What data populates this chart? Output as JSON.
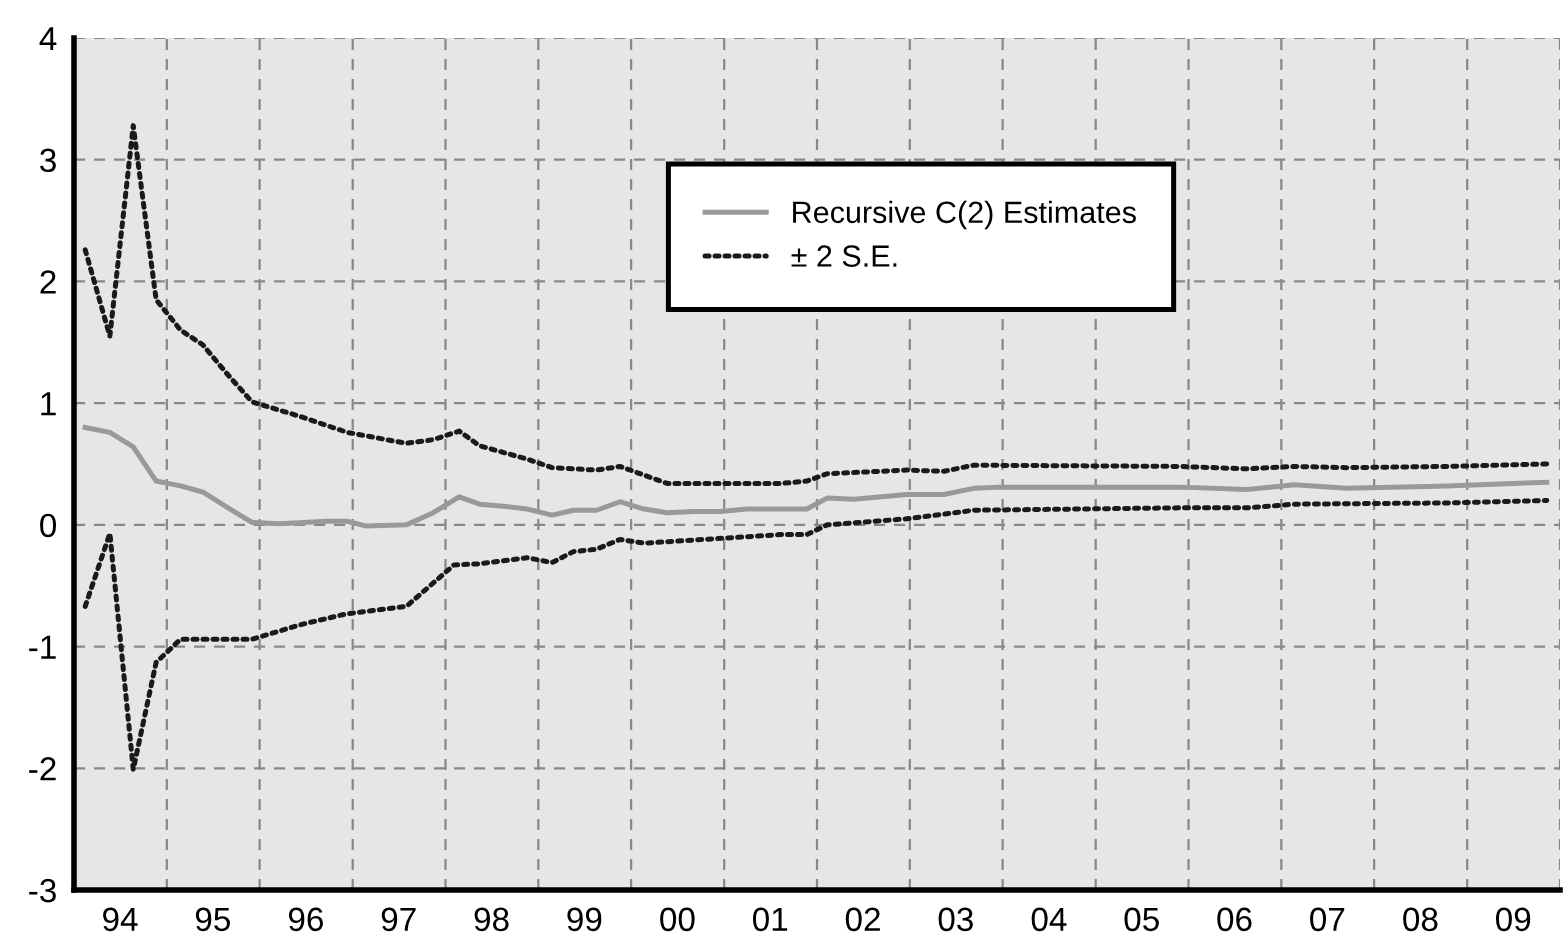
{
  "chart_data": {
    "type": "line",
    "xlim": [
      "1994-01-01",
      "2010-01-01"
    ],
    "ylim": [
      -3,
      4
    ],
    "yticks": [
      -3,
      -2,
      -1,
      0,
      1,
      2,
      3,
      4
    ],
    "xticks": [
      {
        "value": "1994-01-01",
        "label": null
      },
      {
        "value": "1994-07-01",
        "label": "94"
      },
      {
        "value": "1995-01-01",
        "label": null
      },
      {
        "value": "1995-07-01",
        "label": "95"
      },
      {
        "value": "1996-01-01",
        "label": null
      },
      {
        "value": "1996-07-01",
        "label": "96"
      },
      {
        "value": "1997-01-01",
        "label": null
      },
      {
        "value": "1997-07-01",
        "label": "97"
      },
      {
        "value": "1998-01-01",
        "label": null
      },
      {
        "value": "1998-07-01",
        "label": "98"
      },
      {
        "value": "1999-01-01",
        "label": null
      },
      {
        "value": "1999-07-01",
        "label": "99"
      },
      {
        "value": "2000-01-01",
        "label": null
      },
      {
        "value": "2000-07-01",
        "label": "00"
      },
      {
        "value": "2001-01-01",
        "label": null
      },
      {
        "value": "2001-07-01",
        "label": "01"
      },
      {
        "value": "2002-01-01",
        "label": null
      },
      {
        "value": "2002-07-01",
        "label": "02"
      },
      {
        "value": "2003-01-01",
        "label": null
      },
      {
        "value": "2003-07-01",
        "label": "03"
      },
      {
        "value": "2004-01-01",
        "label": null
      },
      {
        "value": "2004-07-01",
        "label": "04"
      },
      {
        "value": "2005-01-01",
        "label": null
      },
      {
        "value": "2005-07-01",
        "label": "05"
      },
      {
        "value": "2006-01-01",
        "label": null
      },
      {
        "value": "2006-07-01",
        "label": "06"
      },
      {
        "value": "2007-01-01",
        "label": null
      },
      {
        "value": "2007-07-01",
        "label": "07"
      },
      {
        "value": "2008-01-01",
        "label": null
      },
      {
        "value": "2008-07-01",
        "label": "08"
      },
      {
        "value": "2009-01-01",
        "label": null
      },
      {
        "value": "2009-07-01",
        "label": "09"
      },
      {
        "value": "2010-01-01",
        "label": null
      }
    ],
    "grid": true,
    "legend": "top",
    "series": [
      {
        "name": "Recursive C(2) Estimates",
        "color": "#999999",
        "line_style": "solid",
        "x": [
          "1994-02-14",
          "1994-05-22",
          "1994-08-22",
          "1994-11-20",
          "1995-02-24",
          "1995-05-22",
          "1995-08-22",
          "1995-12-02",
          "1996-03-20",
          "1996-09-20",
          "1996-12-10",
          "1997-02-24",
          "1997-07-31",
          "1997-11-14",
          "1998-02-24",
          "1998-05-15",
          "1998-08-29",
          "1998-11-18",
          "1999-02-24",
          "1999-05-19",
          "1999-08-18",
          "1999-11-18",
          "2000-02-21",
          "2000-05-22",
          "2000-09-02",
          "2000-12-17",
          "2001-04-01",
          "2001-08-11",
          "2001-11-22",
          "2002-02-10",
          "2002-05-26",
          "2002-12-20",
          "2003-05-15",
          "2003-09-09",
          "2003-12-24",
          "2005-12-02",
          "2006-08-18",
          "2007-02-21",
          "2007-09-16",
          "2008-10-16",
          "2009-11-10"
        ],
        "values": [
          0.8,
          0.76,
          0.64,
          0.36,
          0.32,
          0.27,
          0.15,
          0.02,
          0.01,
          0.03,
          0.03,
          -0.01,
          0.0,
          0.1,
          0.23,
          0.17,
          0.15,
          0.13,
          0.08,
          0.12,
          0.12,
          0.19,
          0.13,
          0.1,
          0.11,
          0.11,
          0.13,
          0.13,
          0.13,
          0.22,
          0.21,
          0.25,
          0.25,
          0.3,
          0.31,
          0.31,
          0.29,
          0.33,
          0.3,
          0.32,
          0.35
        ]
      },
      {
        "name": "± 2 S.E.",
        "color": "#1a1a1a",
        "line_style": "dotted",
        "x": [
          "1994-02-14",
          "1994-05-22",
          "1994-08-22",
          "1994-11-20",
          "1995-02-24",
          "1995-05-22",
          "1995-08-22",
          "1995-12-02",
          "1996-06-10",
          "1996-12-10",
          "1997-07-31",
          "1997-11-14",
          "1998-02-24",
          "1998-05-15",
          "1998-11-18",
          "1999-02-24",
          "1999-08-18",
          "1999-11-18",
          "2000-05-22",
          "2001-08-11",
          "2001-11-22",
          "2002-02-10",
          "2002-12-20",
          "2003-05-15",
          "2003-09-09",
          "2005-12-02",
          "2006-08-18",
          "2007-02-21",
          "2007-09-16",
          "2008-10-16",
          "2009-11-10"
        ],
        "values": [
          2.26,
          1.55,
          3.28,
          1.85,
          1.6,
          1.48,
          1.25,
          1.01,
          0.89,
          0.76,
          0.67,
          0.7,
          0.77,
          0.65,
          0.54,
          0.47,
          0.45,
          0.48,
          0.34,
          0.34,
          0.36,
          0.42,
          0.45,
          0.44,
          0.49,
          0.48,
          0.46,
          0.48,
          0.47,
          0.48,
          0.5
        ]
      },
      {
        "color": "#1a1a1a",
        "line_style": "dotted",
        "x": [
          "1994-02-14",
          "1994-05-22",
          "1994-08-22",
          "1994-11-20",
          "1995-02-24",
          "1995-05-22",
          "1995-12-02",
          "1996-06-10",
          "1996-12-10",
          "1997-07-31",
          "1998-02-03",
          "1998-05-15",
          "1998-11-18",
          "1999-02-24",
          "1999-05-19",
          "1999-08-18",
          "1999-11-18",
          "2000-02-21",
          "2001-08-11",
          "2001-11-22",
          "2002-02-10",
          "2002-12-20",
          "2003-09-09",
          "2005-12-02",
          "2006-08-18",
          "2007-02-21",
          "2008-10-16",
          "2009-11-10"
        ],
        "values": [
          -0.67,
          -0.07,
          -2.01,
          -1.13,
          -0.94,
          -0.94,
          -0.94,
          -0.82,
          -0.73,
          -0.67,
          -0.33,
          -0.32,
          -0.27,
          -0.31,
          -0.22,
          -0.2,
          -0.12,
          -0.15,
          -0.08,
          -0.08,
          0.0,
          0.05,
          0.12,
          0.14,
          0.14,
          0.17,
          0.18,
          0.2
        ]
      }
    ]
  }
}
